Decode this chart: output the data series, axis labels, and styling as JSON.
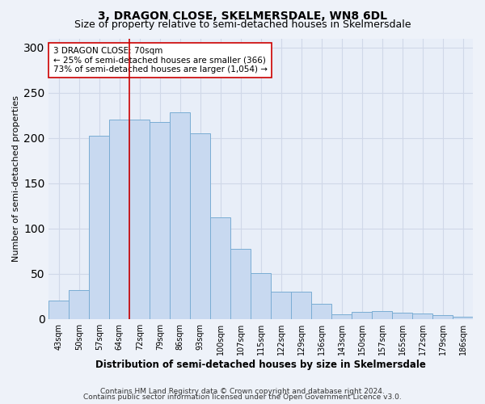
{
  "title": "3, DRAGON CLOSE, SKELMERSDALE, WN8 6DL",
  "subtitle": "Size of property relative to semi-detached houses in Skelmersdale",
  "xlabel": "Distribution of semi-detached houses by size in Skelmersdale",
  "ylabel": "Number of semi-detached properties",
  "footer_line1": "Contains HM Land Registry data © Crown copyright and database right 2024.",
  "footer_line2": "Contains public sector information licensed under the Open Government Licence v3.0.",
  "categories": [
    "43sqm",
    "50sqm",
    "57sqm",
    "64sqm",
    "72sqm",
    "79sqm",
    "86sqm",
    "93sqm",
    "100sqm",
    "107sqm",
    "115sqm",
    "122sqm",
    "129sqm",
    "136sqm",
    "143sqm",
    "150sqm",
    "157sqm",
    "165sqm",
    "172sqm",
    "179sqm",
    "186sqm"
  ],
  "values": [
    20,
    32,
    202,
    220,
    220,
    218,
    228,
    205,
    112,
    77,
    51,
    30,
    30,
    17,
    5,
    8,
    9,
    7,
    6,
    4,
    2
  ],
  "bar_color": "#c8d9f0",
  "bar_edge_color": "#7aadd4",
  "vline_x_index": 4,
  "vline_color": "#cc0000",
  "annotation_text": "3 DRAGON CLOSE: 70sqm\n← 25% of semi-detached houses are smaller (366)\n73% of semi-detached houses are larger (1,054) →",
  "annotation_box_facecolor": "#ffffff",
  "annotation_box_edgecolor": "#cc0000",
  "ylim": [
    0,
    310
  ],
  "yticks": [
    0,
    50,
    100,
    150,
    200,
    250,
    300
  ],
  "bg_color": "#eef2f9",
  "plot_bg_color": "#e8eef8",
  "grid_color": "#d0d8e8",
  "title_fontsize": 10,
  "subtitle_fontsize": 9,
  "xlabel_fontsize": 8.5,
  "ylabel_fontsize": 8,
  "tick_fontsize": 7,
  "annotation_fontsize": 7.5,
  "footer_fontsize": 6.5
}
